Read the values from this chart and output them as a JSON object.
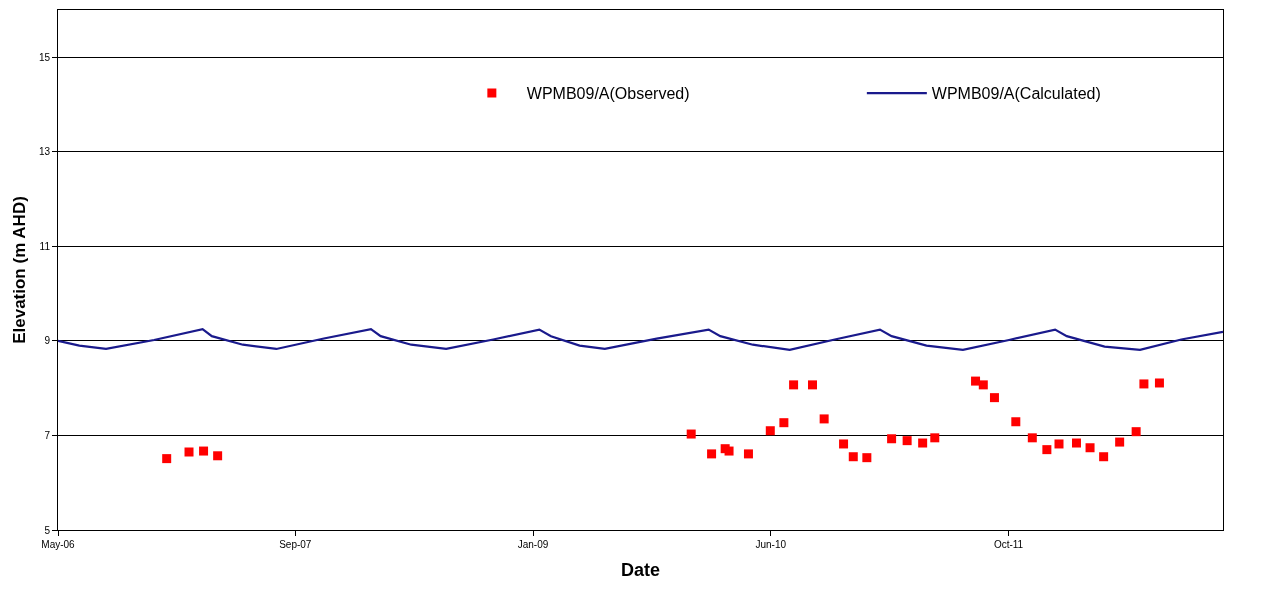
{
  "chart_data": {
    "type": "scatter",
    "xlabel": "Date",
    "ylabel": "Elevation (m AHD)",
    "xlim": [
      "2006-05-25",
      "2012-12-20"
    ],
    "xticks": [
      {
        "value": "2006-05-25",
        "label": "May-06"
      },
      {
        "value": "2007-09-26",
        "label": "Sep-07"
      },
      {
        "value": "2009-01-28",
        "label": "Jan-09"
      },
      {
        "value": "2010-06-02",
        "label": "Jun-10"
      },
      {
        "value": "2011-10-05",
        "label": "Oct-11"
      }
    ],
    "ylim": [
      5,
      16
    ],
    "yticks": [
      5,
      7,
      9,
      11,
      13,
      15
    ],
    "grid": "y",
    "legend": "top",
    "series": [
      {
        "name": "WPMB09/A(Observed)",
        "marker": "square",
        "color": "#ff0000",
        "x": [
          "2007-01-04",
          "2007-02-19",
          "2007-03-21",
          "2007-04-19",
          "2009-12-20",
          "2010-01-31",
          "2010-02-28",
          "2010-03-08",
          "2010-04-17",
          "2010-06-01",
          "2010-06-29",
          "2010-07-19",
          "2010-08-27",
          "2010-09-20",
          "2010-10-30",
          "2010-11-19",
          "2010-12-17",
          "2011-02-06",
          "2011-03-10",
          "2011-04-11",
          "2011-05-06",
          "2011-07-29",
          "2011-08-14",
          "2011-09-06",
          "2011-10-20",
          "2011-11-23",
          "2011-12-23",
          "2012-01-17",
          "2012-02-22",
          "2012-03-21",
          "2012-04-18",
          "2012-05-21",
          "2012-06-24",
          "2012-07-10",
          "2012-08-11"
        ],
        "values": [
          6.51,
          6.65,
          6.67,
          6.57,
          7.03,
          6.61,
          6.72,
          6.67,
          6.61,
          7.1,
          7.27,
          8.07,
          8.07,
          7.35,
          6.82,
          6.55,
          6.53,
          6.93,
          6.89,
          6.84,
          6.95,
          8.15,
          8.07,
          7.8,
          7.29,
          6.95,
          6.7,
          6.82,
          6.84,
          6.74,
          6.55,
          6.86,
          7.08,
          8.09,
          8.11
        ]
      },
      {
        "name": "WPMB09/A(Calculated)",
        "type": "line",
        "marker": "none",
        "line_style": "solid",
        "color": "#1a1a8c",
        "x": [
          "2006-05-25",
          "2006-07-08",
          "2006-09-01",
          "2006-12-09",
          "2007-03-19",
          "2007-04-07",
          "2007-06-10",
          "2007-08-18",
          "2007-11-24",
          "2008-02-29",
          "2008-03-20",
          "2008-05-22",
          "2008-08-02",
          "2008-11-07",
          "2009-02-10",
          "2009-03-06",
          "2009-05-04",
          "2009-06-25",
          "2009-10-10",
          "2010-01-25",
          "2010-02-18",
          "2010-04-26",
          "2010-07-11",
          "2010-10-12",
          "2011-01-13",
          "2011-02-06",
          "2011-04-19",
          "2011-07-03",
          "2011-10-06",
          "2012-01-09",
          "2012-02-02",
          "2012-04-20",
          "2012-07-02",
          "2012-09-25",
          "2012-12-20"
        ],
        "values": [
          9.0,
          8.9,
          8.83,
          9.02,
          9.25,
          9.1,
          8.92,
          8.83,
          9.05,
          9.25,
          9.1,
          8.92,
          8.83,
          9.03,
          9.24,
          9.1,
          8.9,
          8.83,
          9.05,
          9.24,
          9.1,
          8.92,
          8.81,
          9.03,
          9.24,
          9.1,
          8.9,
          8.81,
          9.02,
          9.24,
          9.1,
          8.88,
          8.81,
          9.03,
          9.19
        ]
      }
    ]
  }
}
